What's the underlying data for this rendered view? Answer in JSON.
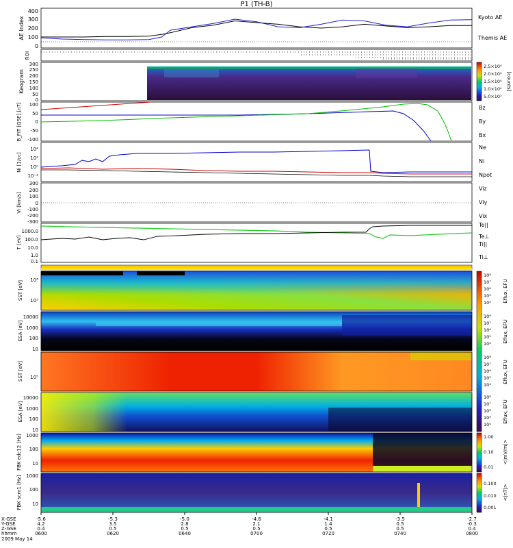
{
  "title": "P1 (TH-B)",
  "chart_data": [
    {
      "type": "line",
      "panel": "ae",
      "ylabel": "AE Index",
      "yticks": [
        "400",
        "300",
        "200",
        "100",
        "0"
      ],
      "ylim": [
        -50,
        420
      ],
      "x": [
        0,
        0.05,
        0.1,
        0.15,
        0.2,
        0.25,
        0.28,
        0.3,
        0.35,
        0.4,
        0.45,
        0.5,
        0.55,
        0.6,
        0.65,
        0.7,
        0.75,
        0.8,
        0.85,
        0.9,
        0.95,
        1.0
      ],
      "series": [
        {
          "name": "Kyoto AE",
          "color": "#1a1acc",
          "values": [
            70,
            55,
            50,
            45,
            45,
            50,
            80,
            160,
            200,
            240,
            290,
            260,
            200,
            190,
            230,
            280,
            270,
            220,
            200,
            245,
            280,
            285
          ]
        },
        {
          "name": "Themis AE",
          "color": "#000000",
          "values": [
            80,
            80,
            80,
            85,
            85,
            90,
            110,
            130,
            190,
            220,
            270,
            250,
            230,
            200,
            185,
            200,
            230,
            210,
            190,
            200,
            215,
            215
          ]
        }
      ]
    },
    {
      "type": "line",
      "panel": "b",
      "ylabel": "B_FIT [GSE] [nT]",
      "yticks": [
        "100",
        "50",
        "0",
        "-50",
        "-100"
      ],
      "ylim": [
        -100,
        100
      ],
      "series": [
        {
          "name": "Bz",
          "color": "#cc0000",
          "values": []
        },
        {
          "name": "By",
          "color": "#00bb00",
          "values": []
        },
        {
          "name": "Bx",
          "color": "#0000cc",
          "values": []
        }
      ]
    },
    {
      "type": "line",
      "panel": "n",
      "ylabel": "Ni [1/cc]",
      "yticks": [
        "10⁴",
        "10²",
        "10⁰",
        "10⁻²"
      ],
      "series": [
        {
          "name": "Ne",
          "color": "#cc0000",
          "values": []
        },
        {
          "name": "Ni",
          "color": "#000000",
          "values": []
        },
        {
          "name": "Npot",
          "color": "#0000cc",
          "values": []
        }
      ]
    },
    {
      "type": "line",
      "panel": "v",
      "ylabel": "Vi [km/s]",
      "yticks": [
        "300",
        "200",
        "100",
        "0",
        "-100",
        "-200",
        "-300"
      ],
      "ylim": [
        -300,
        300
      ],
      "series": [
        {
          "name": "Viz",
          "color": "#cc0000",
          "values": []
        },
        {
          "name": "Viy",
          "color": "#00bb00",
          "values": []
        },
        {
          "name": "Vix",
          "color": "#0000cc",
          "values": []
        }
      ]
    },
    {
      "type": "line",
      "panel": "temp",
      "ylabel": "T [eV]",
      "yticks": [
        "1000.0",
        "100.0",
        "10.0",
        "1.0",
        "0.1"
      ],
      "series": [
        {
          "name": "Te||",
          "color": "#000000",
          "values": []
        },
        {
          "name": "Te⊥",
          "color": "#cc0000",
          "values": []
        },
        {
          "name": "Ti||",
          "color": "#00bb00",
          "values": []
        },
        {
          "name": "Ti⊥",
          "color": "#0000cc",
          "values": []
        }
      ]
    }
  ],
  "panels": {
    "roi": {
      "label": "ROI"
    },
    "keogram": {
      "label": "Keogram",
      "yticks": [
        "300",
        "250",
        "200",
        "150",
        "100",
        "50",
        "0"
      ],
      "cbar_ticks": [
        "2.5×10⁴",
        "2.0×10⁴",
        "1.5×10⁴",
        "1.0×10⁴",
        "5.0×10³"
      ],
      "cbar_label": "[counts]"
    },
    "sst_e": {
      "label": "SST [eV]",
      "yticks": [
        "10⁶",
        "10⁵"
      ]
    },
    "esa_e": {
      "label": "ESA [eV]",
      "yticks": [
        "10000",
        "1000",
        "100",
        "10"
      ]
    },
    "sst_i": {
      "label": "SST [eV]",
      "yticks": [
        "10⁵"
      ]
    },
    "esa_i": {
      "label": "ESA [eV]",
      "yticks": [
        "10000",
        "1000",
        "100",
        "10"
      ]
    },
    "fbk1": {
      "label": "FBK edc12 [Hz]",
      "yticks": [
        "1000",
        "100",
        "10"
      ],
      "cbar_ticks": [
        "1.00",
        "0.10",
        "0.01"
      ],
      "cbar_label": "<|mV/m|>"
    },
    "fbk2": {
      "label": "FBK scm1 [Hz]",
      "yticks": [
        "1000",
        "100",
        "10"
      ],
      "cbar_ticks": [
        "0.100",
        "0.010",
        "0.001"
      ],
      "cbar_label": "<|nT|>"
    },
    "eflux_cbar": {
      "ticks": [
        "10⁸",
        "10⁷",
        "10⁶",
        "10⁵",
        "10⁴",
        "10³"
      ],
      "label": "Eflux, EFU"
    }
  },
  "xaxis": {
    "row_labels": [
      "X-GSE",
      "Y-GSE",
      "Z-GSE",
      "hhmm",
      "2009 May 14"
    ],
    "ticks": [
      {
        "x": "-5.6",
        "y": "4.2",
        "z": "0.4",
        "t": "0600"
      },
      {
        "x": "-5.3",
        "y": "3.5",
        "z": "0.5",
        "t": "0620"
      },
      {
        "x": "-5.0",
        "y": "2.8",
        "z": "0.5",
        "t": "0640"
      },
      {
        "x": "-4.6",
        "y": "2.1",
        "z": "0.5",
        "t": "0700"
      },
      {
        "x": "-4.1",
        "y": "1.4",
        "z": "0.5",
        "t": "0720"
      },
      {
        "x": "-3.5",
        "y": "0.5",
        "z": "0.5",
        "t": "0740"
      },
      {
        "x": "-2.7",
        "y": "-0.3",
        "z": "0.4",
        "t": "0800"
      }
    ]
  }
}
